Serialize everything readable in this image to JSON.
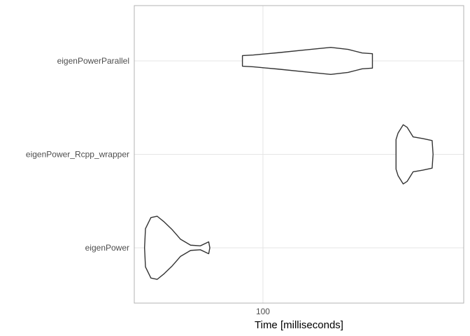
{
  "chart_data": {
    "type": "violin",
    "xlabel": "Time [milliseconds]",
    "ylabel": "",
    "x_scale": "log10",
    "xlim": [
      66.5,
      189
    ],
    "x_ticks": [
      100
    ],
    "x_tick_labels": [
      "100"
    ],
    "grid": true,
    "categories": [
      "eigenPower",
      "eigenPower_Rcpp_wrapper",
      "eigenPowerParallel"
    ],
    "series": [
      {
        "name": "eigenPower",
        "profile": [
          {
            "x": 68.7,
            "w": 0.0
          },
          {
            "x": 68.9,
            "w": 0.58
          },
          {
            "x": 70.1,
            "w": 0.92
          },
          {
            "x": 71.5,
            "w": 0.96
          },
          {
            "x": 73.0,
            "w": 0.8
          },
          {
            "x": 75.0,
            "w": 0.55
          },
          {
            "x": 77.0,
            "w": 0.26
          },
          {
            "x": 79.5,
            "w": 0.08
          },
          {
            "x": 82.0,
            "w": 0.06
          },
          {
            "x": 84.2,
            "w": 0.18
          },
          {
            "x": 84.5,
            "w": 0.0
          }
        ]
      },
      {
        "name": "eigenPower_Rcpp_wrapper",
        "profile": [
          {
            "x": 152.5,
            "w": 0.0
          },
          {
            "x": 152.5,
            "w": 0.45
          },
          {
            "x": 153.5,
            "w": 0.65
          },
          {
            "x": 156.0,
            "w": 0.9
          },
          {
            "x": 158.0,
            "w": 0.82
          },
          {
            "x": 161.0,
            "w": 0.53
          },
          {
            "x": 166.0,
            "w": 0.48
          },
          {
            "x": 171.0,
            "w": 0.42
          },
          {
            "x": 171.5,
            "w": 0.0
          }
        ]
      },
      {
        "name": "eigenPowerParallel",
        "profile": [
          {
            "x": 93.7,
            "w": 0.0
          },
          {
            "x": 93.7,
            "w": 0.16
          },
          {
            "x": 97.0,
            "w": 0.18
          },
          {
            "x": 105.0,
            "w": 0.25
          },
          {
            "x": 115.0,
            "w": 0.34
          },
          {
            "x": 124.0,
            "w": 0.41
          },
          {
            "x": 131.0,
            "w": 0.35
          },
          {
            "x": 137.0,
            "w": 0.24
          },
          {
            "x": 141.5,
            "w": 0.22
          },
          {
            "x": 141.5,
            "w": 0.0
          }
        ]
      }
    ]
  }
}
